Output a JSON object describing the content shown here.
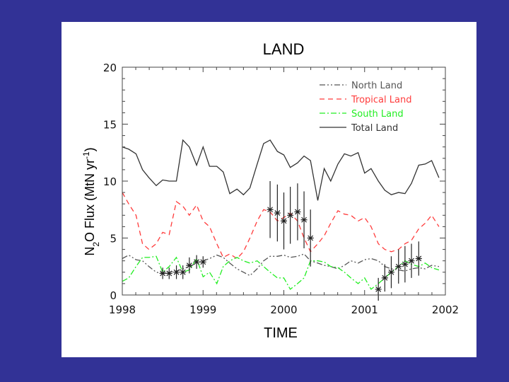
{
  "slide": {
    "background": "#323296",
    "panel_color": "#ffffff"
  },
  "chart_data": {
    "type": "line",
    "title": "LAND",
    "xlabel": "TIME",
    "ylabel_parts": {
      "p1": "N",
      "sub": "2",
      "p2": "O Flux (MtN yr",
      "sup": "-1",
      "p3": ")"
    },
    "xlim": [
      1998,
      2002
    ],
    "ylim": [
      0,
      20
    ],
    "x_ticks": [
      1998,
      1999,
      2000,
      2001,
      2002
    ],
    "y_ticks": [
      0,
      5,
      10,
      15,
      20
    ],
    "legend_position": "top-right",
    "series": [
      {
        "name": "North Land",
        "color": "#555555",
        "style": "dashdotdot",
        "x": [
          1998.0,
          1998.08,
          1998.17,
          1998.25,
          1998.33,
          1998.42,
          1998.5,
          1998.58,
          1998.67,
          1998.75,
          1998.83,
          1998.92,
          1999.0,
          1999.08,
          1999.17,
          1999.25,
          1999.33,
          1999.42,
          1999.5,
          1999.58,
          1999.67,
          1999.75,
          1999.83,
          1999.92,
          2000.0,
          2000.08,
          2000.17,
          2000.25,
          2000.33,
          2000.42,
          2000.5,
          2000.58,
          2000.67,
          2000.75,
          2000.83,
          2000.92,
          2001.0,
          2001.08,
          2001.17,
          2001.25,
          2001.33,
          2001.42,
          2001.5,
          2001.58,
          2001.67,
          2001.75,
          2001.83,
          2001.92
        ],
        "y": [
          3.2,
          3.5,
          3.1,
          3.0,
          2.5,
          2.0,
          1.9,
          2.0,
          2.1,
          2.3,
          2.5,
          2.8,
          3.0,
          3.2,
          3.5,
          3.3,
          2.8,
          2.3,
          2.0,
          1.7,
          2.3,
          3.0,
          3.4,
          3.4,
          3.5,
          3.3,
          3.4,
          3.6,
          3.0,
          2.8,
          2.6,
          2.5,
          2.3,
          2.6,
          3.0,
          2.8,
          3.1,
          3.2,
          3.0,
          2.5,
          2.3,
          2.2,
          2.1,
          2.3,
          2.4,
          2.3,
          2.6,
          2.5
        ]
      },
      {
        "name": "Tropical Land",
        "color": "#ff3c3c",
        "style": "dashed",
        "x": [
          1998.0,
          1998.08,
          1998.17,
          1998.25,
          1998.33,
          1998.42,
          1998.5,
          1998.58,
          1998.67,
          1998.75,
          1998.83,
          1998.92,
          1999.0,
          1999.08,
          1999.17,
          1999.25,
          1999.33,
          1999.42,
          1999.5,
          1999.58,
          1999.67,
          1999.75,
          1999.83,
          1999.92,
          2000.0,
          2000.08,
          2000.17,
          2000.25,
          2000.33,
          2000.42,
          2000.5,
          2000.58,
          2000.67,
          2000.75,
          2000.83,
          2000.92,
          2001.0,
          2001.08,
          2001.17,
          2001.25,
          2001.33,
          2001.42,
          2001.5,
          2001.58,
          2001.67,
          2001.75,
          2001.83,
          2001.92
        ],
        "y": [
          9.0,
          8.0,
          7.0,
          4.5,
          4.0,
          4.5,
          5.5,
          5.3,
          8.2,
          7.8,
          7.0,
          7.9,
          6.5,
          6.0,
          4.5,
          3.3,
          3.6,
          3.2,
          3.8,
          5.0,
          6.5,
          7.5,
          7.3,
          6.5,
          6.8,
          7.2,
          6.5,
          5.0,
          3.8,
          4.5,
          5.2,
          6.3,
          7.4,
          7.1,
          7.0,
          6.5,
          6.8,
          6.0,
          4.5,
          4.0,
          3.8,
          4.0,
          4.5,
          4.8,
          5.8,
          6.3,
          7.0,
          6.0
        ]
      },
      {
        "name": "South Land",
        "color": "#22ee22",
        "style": "dashdot",
        "x": [
          1998.0,
          1998.08,
          1998.17,
          1998.25,
          1998.33,
          1998.42,
          1998.5,
          1998.58,
          1998.67,
          1998.75,
          1998.83,
          1998.92,
          1999.0,
          1999.08,
          1999.17,
          1999.25,
          1999.33,
          1999.42,
          1999.5,
          1999.58,
          1999.67,
          1999.75,
          1999.83,
          1999.92,
          2000.0,
          2000.08,
          2000.17,
          2000.25,
          2000.33,
          2000.42,
          2000.5,
          2000.58,
          2000.67,
          2000.75,
          2000.83,
          2000.92,
          2001.0,
          2001.08,
          2001.17,
          2001.25,
          2001.33,
          2001.42,
          2001.5,
          2001.58,
          2001.67,
          2001.75,
          2001.83,
          2001.92
        ],
        "y": [
          1.2,
          1.5,
          2.5,
          3.3,
          3.3,
          3.4,
          2.0,
          2.5,
          3.3,
          2.0,
          2.2,
          3.2,
          1.6,
          2.0,
          1.0,
          2.5,
          3.0,
          3.3,
          3.0,
          2.8,
          3.0,
          2.5,
          2.0,
          1.5,
          1.5,
          0.5,
          1.0,
          1.5,
          3.0,
          3.0,
          2.9,
          2.5,
          2.4,
          2.0,
          1.5,
          1.0,
          1.5,
          0.5,
          1.0,
          1.5,
          2.0,
          2.5,
          3.0,
          2.7,
          2.5,
          2.8,
          2.4,
          2.2
        ]
      },
      {
        "name": "Total Land",
        "color": "#333333",
        "style": "solid",
        "x": [
          1998.0,
          1998.08,
          1998.17,
          1998.25,
          1998.33,
          1998.42,
          1998.5,
          1998.58,
          1998.67,
          1998.75,
          1998.83,
          1998.92,
          1999.0,
          1999.08,
          1999.17,
          1999.25,
          1999.33,
          1999.42,
          1999.5,
          1999.58,
          1999.67,
          1999.75,
          1999.83,
          1999.92,
          2000.0,
          2000.08,
          2000.17,
          2000.25,
          2000.33,
          2000.42,
          2000.5,
          2000.58,
          2000.67,
          2000.75,
          2000.83,
          2000.92,
          2001.0,
          2001.08,
          2001.17,
          2001.25,
          2001.33,
          2001.42,
          2001.5,
          2001.58,
          2001.67,
          2001.75,
          2001.83,
          2001.92
        ],
        "y": [
          13.0,
          12.8,
          12.4,
          11.0,
          10.3,
          9.6,
          10.1,
          10.0,
          10.0,
          13.6,
          13.0,
          11.4,
          13.0,
          11.3,
          11.3,
          10.8,
          8.9,
          9.3,
          8.8,
          9.4,
          11.5,
          13.3,
          13.6,
          12.6,
          12.3,
          11.2,
          11.6,
          12.2,
          11.8,
          8.3,
          11.1,
          10.0,
          11.5,
          12.4,
          12.2,
          12.5,
          10.7,
          11.1,
          10.0,
          9.2,
          8.8,
          9.0,
          8.9,
          9.8,
          11.4,
          11.5,
          11.8,
          10.3
        ]
      }
    ],
    "error_bar_groups": [
      {
        "x": [
          1998.5,
          1998.58,
          1998.67,
          1998.75,
          1998.83,
          1998.92,
          1999.0
        ],
        "y": [
          1.9,
          1.9,
          2.0,
          2.0,
          2.6,
          2.9,
          2.9
        ],
        "err": [
          0.5,
          0.5,
          0.6,
          0.6,
          0.7,
          0.6,
          0.5
        ]
      },
      {
        "x": [
          1999.83,
          1999.92,
          2000.0,
          2000.08,
          2000.17,
          2000.25,
          2000.33
        ],
        "y": [
          7.5,
          7.2,
          6.5,
          7.0,
          7.3,
          6.6,
          5.0
        ],
        "err": [
          2.5,
          2.5,
          2.5,
          2.5,
          2.5,
          2.5,
          2.5
        ]
      },
      {
        "x": [
          2001.17,
          2001.25,
          2001.33,
          2001.42,
          2001.5,
          2001.58,
          2001.67
        ],
        "y": [
          0.5,
          1.5,
          2.0,
          2.5,
          2.7,
          3.0,
          3.2
        ],
        "err": [
          1.0,
          1.2,
          1.4,
          1.5,
          1.6,
          1.5,
          1.5
        ]
      }
    ],
    "error_bar_color": "#222222"
  }
}
